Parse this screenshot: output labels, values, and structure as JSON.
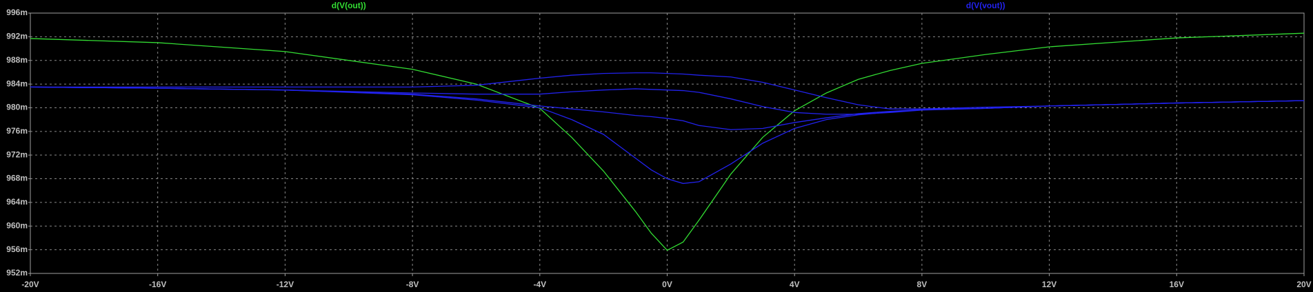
{
  "chart_data": {
    "type": "line",
    "x": [
      -20,
      -16,
      -12,
      -8,
      -6,
      -4,
      -3,
      -2,
      -1,
      -0.5,
      0,
      0.5,
      1,
      2,
      3,
      4,
      5,
      6,
      7,
      8,
      10,
      12,
      16,
      20
    ],
    "series": [
      {
        "name": "d(V(out))",
        "color": "#33dd33",
        "values": [
          0.9917,
          0.991,
          0.9895,
          0.9865,
          0.984,
          0.9799,
          0.975,
          0.9693,
          0.9625,
          0.9588,
          0.9559,
          0.9573,
          0.961,
          0.9688,
          0.975,
          0.9795,
          0.9825,
          0.9848,
          0.9863,
          0.9875,
          0.989,
          0.9903,
          0.9918,
          0.9926
        ]
      },
      {
        "name": "d(V(vout))",
        "color": "#2222ee",
        "values": [
          0.9835,
          0.9835,
          0.9835,
          0.9835,
          0.9838,
          0.985,
          0.9855,
          0.9858,
          0.9859,
          0.9859,
          0.9858,
          0.9857,
          0.9855,
          0.9852,
          0.9843,
          0.983,
          0.9817,
          0.9805,
          0.9798,
          0.9798,
          0.9801,
          0.9803,
          0.9808,
          0.9812
        ]
      },
      {
        "color": "#2222ee",
        "values": [
          0.9835,
          0.9833,
          0.983,
          0.9825,
          0.9823,
          0.9823,
          0.9827,
          0.983,
          0.9832,
          0.9831,
          0.983,
          0.9829,
          0.9826,
          0.9815,
          0.9802,
          0.9792,
          0.9789,
          0.9789,
          0.9792,
          0.9796,
          0.9799,
          0.9803,
          0.9808,
          0.9812
        ]
      },
      {
        "color": "#2222ee",
        "values": [
          0.9835,
          0.9833,
          0.983,
          0.9823,
          0.9815,
          0.9803,
          0.9798,
          0.9793,
          0.9787,
          0.9785,
          0.9782,
          0.9778,
          0.977,
          0.9763,
          0.9765,
          0.9775,
          0.9783,
          0.979,
          0.9794,
          0.9797,
          0.9799,
          0.9803,
          0.9808,
          0.9812
        ]
      },
      {
        "color": "#2222ee",
        "values": [
          0.9835,
          0.9833,
          0.983,
          0.9822,
          0.9813,
          0.98,
          0.978,
          0.9755,
          0.9715,
          0.9695,
          0.968,
          0.9672,
          0.9675,
          0.9705,
          0.974,
          0.9765,
          0.978,
          0.9788,
          0.9793,
          0.9797,
          0.9799,
          0.9803,
          0.9808,
          0.9812
        ]
      }
    ],
    "xlim": [
      -20,
      20
    ],
    "ylim": [
      0.952,
      0.996
    ],
    "xticks": [
      {
        "value": -20,
        "label": "-20V"
      },
      {
        "value": -16,
        "label": "-16V"
      },
      {
        "value": -12,
        "label": "-12V"
      },
      {
        "value": -8,
        "label": "-8V"
      },
      {
        "value": -4,
        "label": "-4V"
      },
      {
        "value": 0,
        "label": "0V"
      },
      {
        "value": 4,
        "label": "4V"
      },
      {
        "value": 8,
        "label": "8V"
      },
      {
        "value": 12,
        "label": "12V"
      },
      {
        "value": 16,
        "label": "16V"
      },
      {
        "value": 20,
        "label": "20V"
      }
    ],
    "yticks": [
      {
        "value": 0.952,
        "label": "952m"
      },
      {
        "value": 0.956,
        "label": "956m"
      },
      {
        "value": 0.96,
        "label": "960m"
      },
      {
        "value": 0.964,
        "label": "964m"
      },
      {
        "value": 0.968,
        "label": "968m"
      },
      {
        "value": 0.972,
        "label": "972m"
      },
      {
        "value": 0.976,
        "label": "976m"
      },
      {
        "value": 0.98,
        "label": "980m"
      },
      {
        "value": 0.984,
        "label": "984m"
      },
      {
        "value": 0.988,
        "label": "988m"
      },
      {
        "value": 0.992,
        "label": "992m"
      },
      {
        "value": 0.996,
        "label": "996m"
      }
    ],
    "grid": true
  }
}
